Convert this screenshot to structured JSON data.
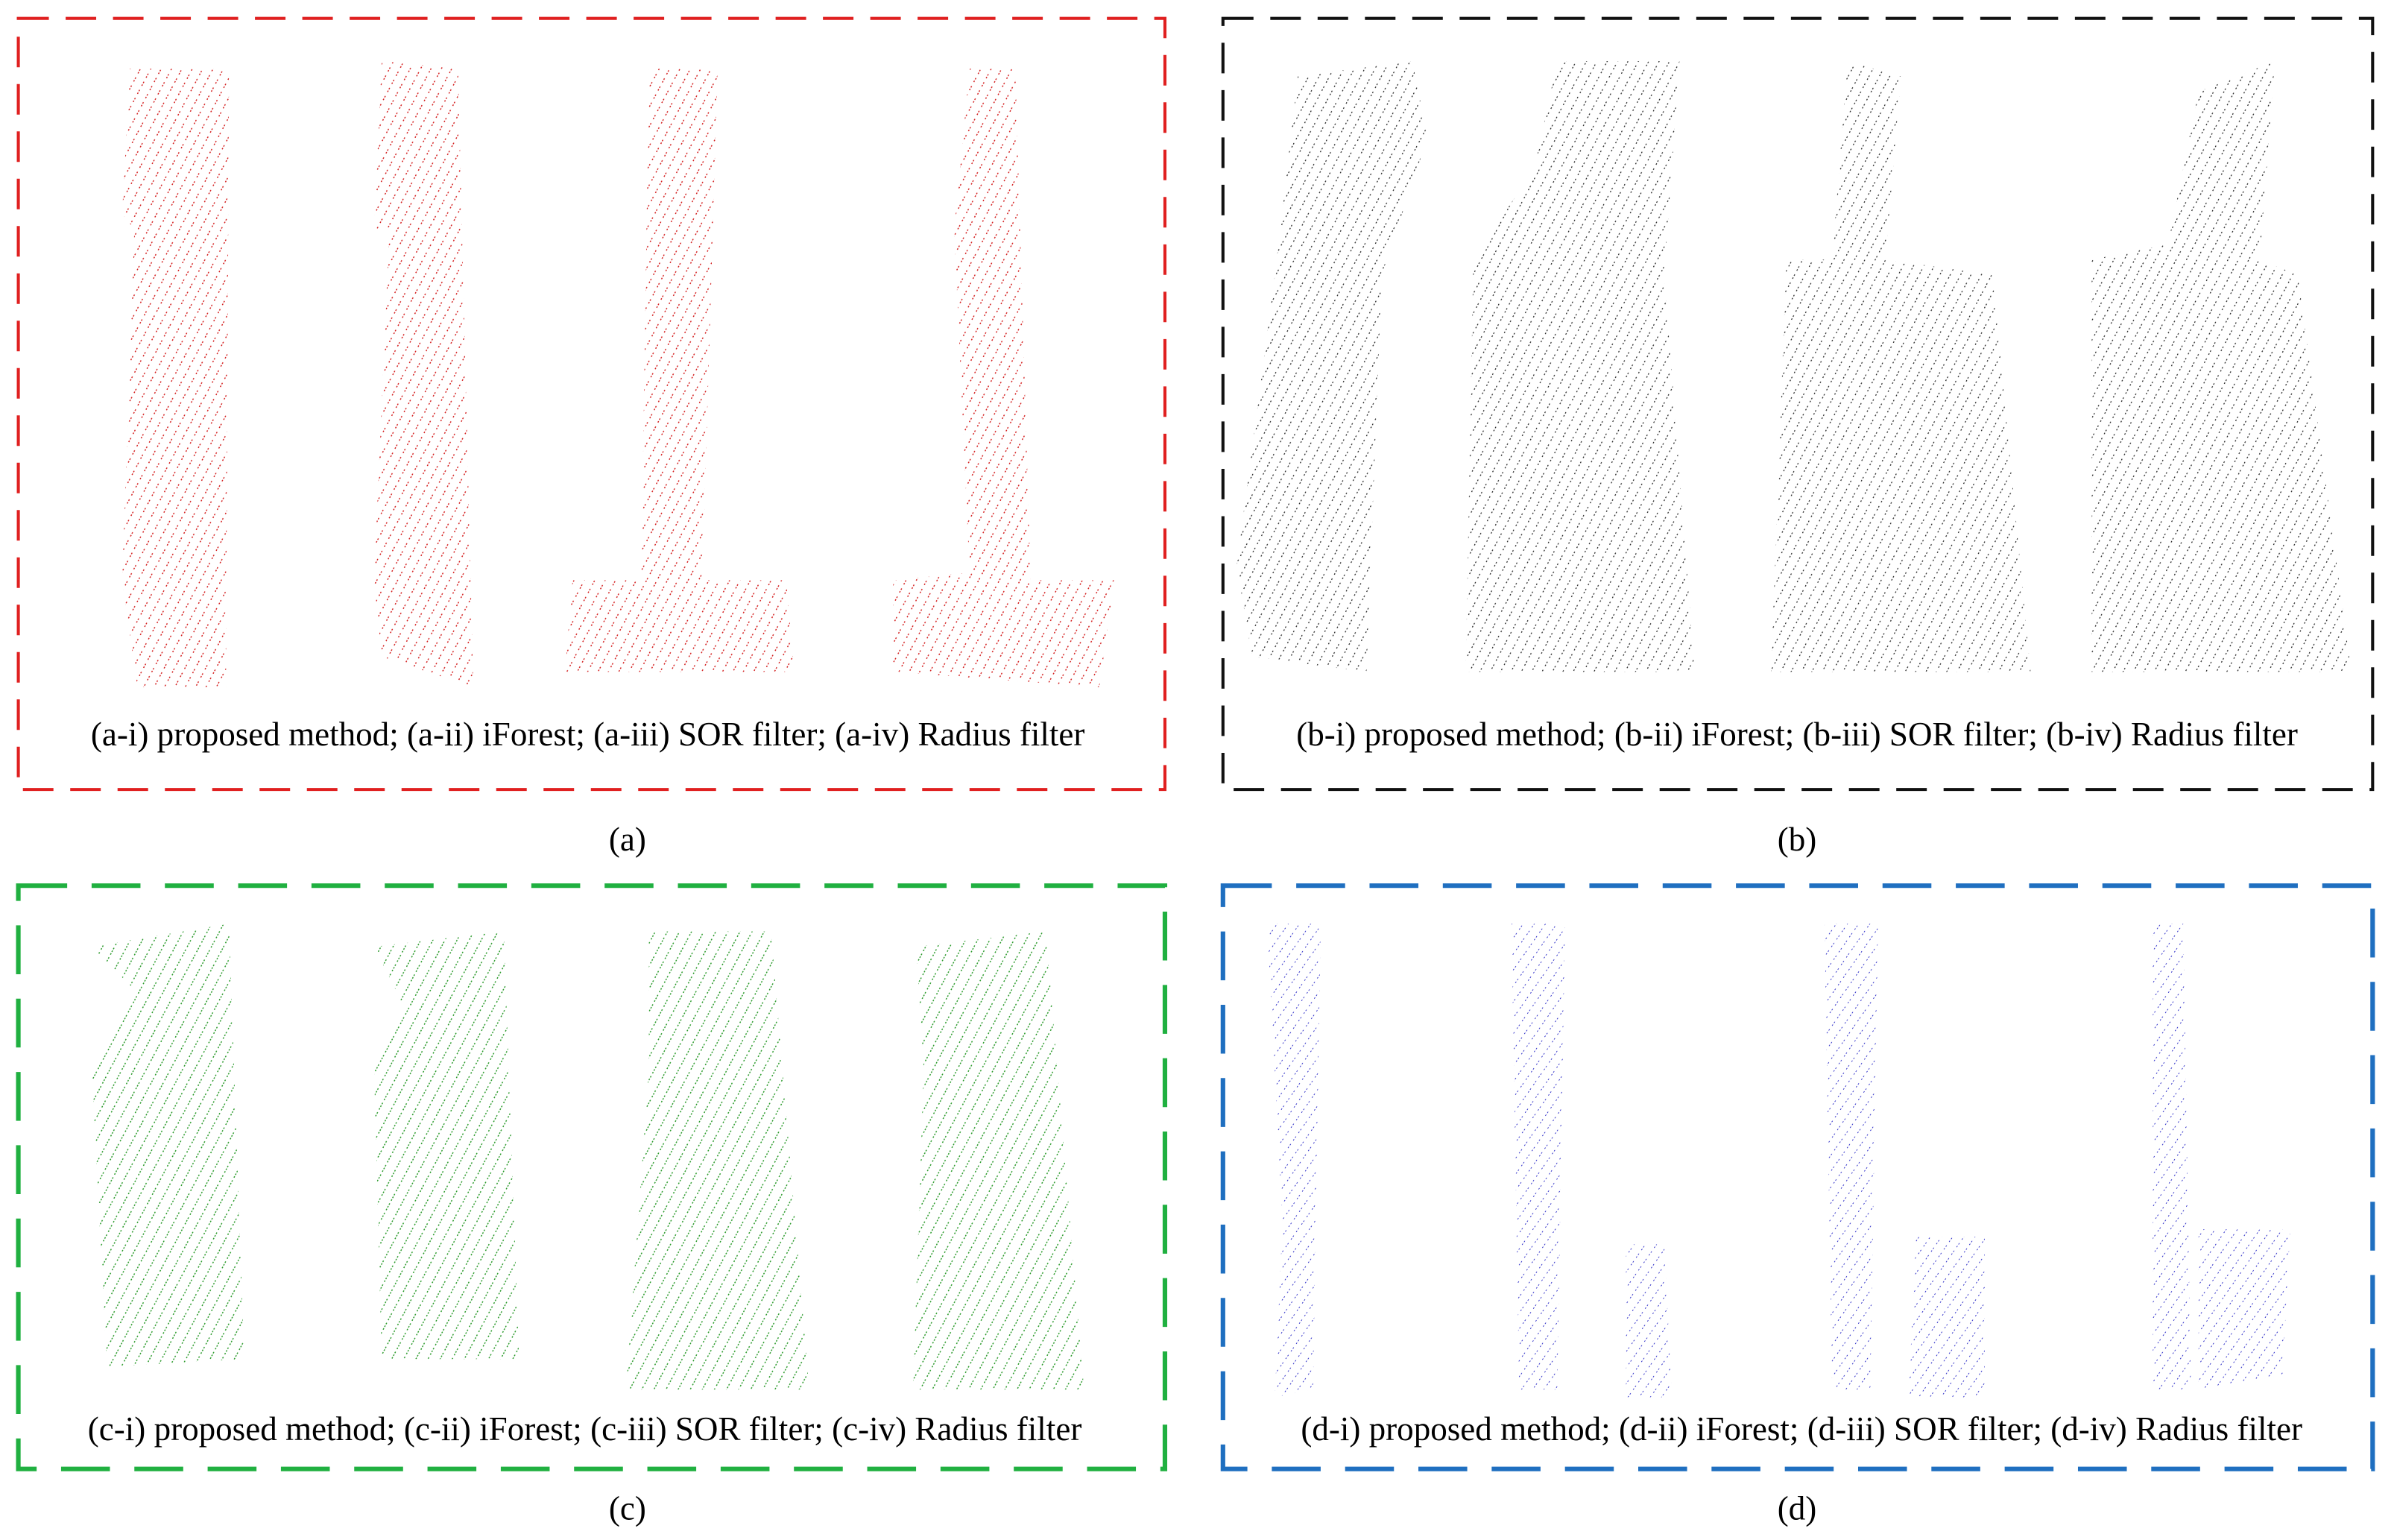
{
  "panels": [
    {
      "caption": "(a-i) proposed method; (a-ii) iForest; (a-iii) SOR filter; (a-iv) Radius filter",
      "label": "(a)"
    },
    {
      "caption": "(b-i) proposed method; (b-ii) iForest; (b-iii) SOR filter; (b-iv) Radius filter",
      "label": "(b)"
    },
    {
      "caption": "(c-i) proposed method; (c-ii) iForest; (c-iii) SOR filter; (c-iv) Radius filter",
      "label": "(c)"
    },
    {
      "caption": "(d-i) proposed method; (d-ii) iForest; (d-iii) SOR filter; (d-iv) Radius filter",
      "label": "(d)"
    }
  ]
}
